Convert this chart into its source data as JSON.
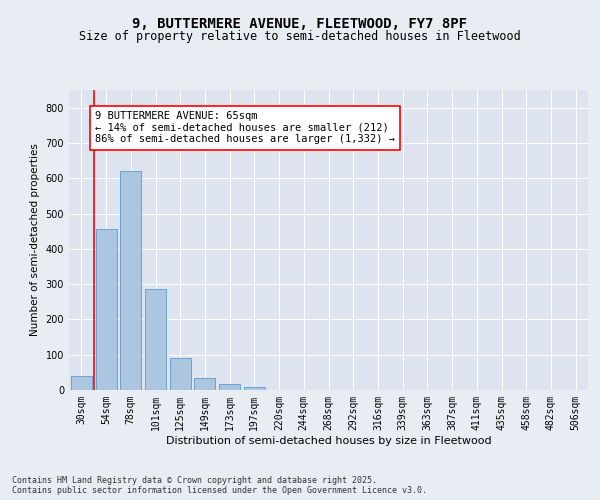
{
  "title1": "9, BUTTERMERE AVENUE, FLEETWOOD, FY7 8PF",
  "title2": "Size of property relative to semi-detached houses in Fleetwood",
  "xlabel": "Distribution of semi-detached houses by size in Fleetwood",
  "ylabel": "Number of semi-detached properties",
  "categories": [
    "30sqm",
    "54sqm",
    "78sqm",
    "101sqm",
    "125sqm",
    "149sqm",
    "173sqm",
    "197sqm",
    "220sqm",
    "244sqm",
    "268sqm",
    "292sqm",
    "316sqm",
    "339sqm",
    "363sqm",
    "387sqm",
    "411sqm",
    "435sqm",
    "458sqm",
    "482sqm",
    "506sqm"
  ],
  "values": [
    40,
    455,
    620,
    285,
    92,
    33,
    18,
    8,
    0,
    0,
    0,
    0,
    0,
    0,
    0,
    0,
    0,
    0,
    0,
    0,
    0
  ],
  "bar_color": "#adc6e0",
  "bar_edge_color": "#5b9bd5",
  "vline_color": "red",
  "annotation_text": "9 BUTTERMERE AVENUE: 65sqm\n← 14% of semi-detached houses are smaller (212)\n86% of semi-detached houses are larger (1,332) →",
  "annotation_box_color": "white",
  "annotation_box_edge": "red",
  "ylim": [
    0,
    850
  ],
  "yticks": [
    0,
    100,
    200,
    300,
    400,
    500,
    600,
    700,
    800
  ],
  "bg_color": "#e8edf4",
  "plot_bg_color": "#dde4f0",
  "footer": "Contains HM Land Registry data © Crown copyright and database right 2025.\nContains public sector information licensed under the Open Government Licence v3.0.",
  "title1_fontsize": 10,
  "title2_fontsize": 8.5,
  "xlabel_fontsize": 8,
  "ylabel_fontsize": 7.5,
  "tick_fontsize": 7,
  "annotation_fontsize": 7.5,
  "footer_fontsize": 6
}
